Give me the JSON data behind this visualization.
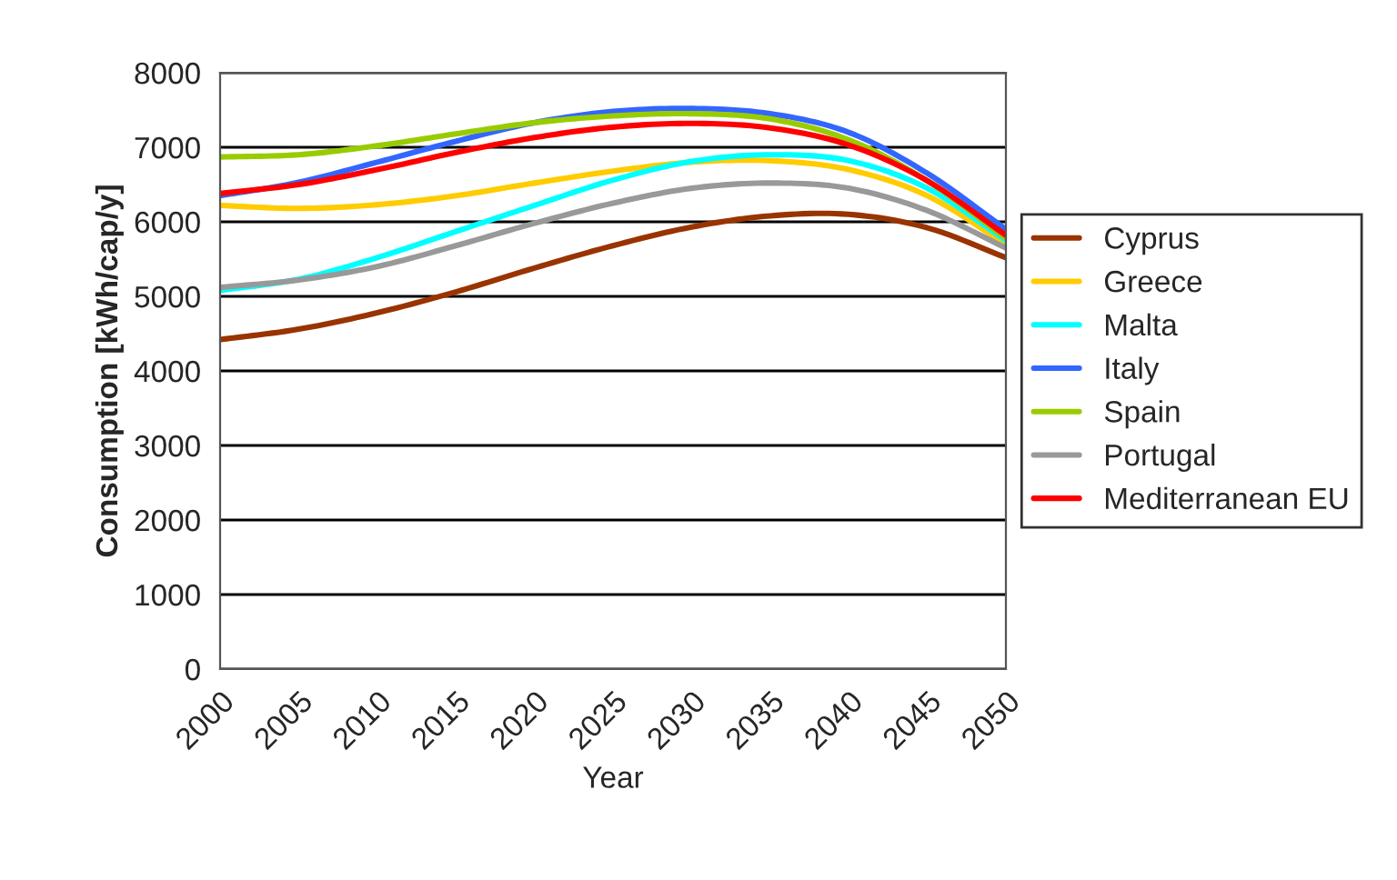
{
  "chart_data": {
    "type": "line",
    "xlabel": "Year",
    "ylabel": "Consumption [kWh/cap/y]",
    "x": [
      2000,
      2005,
      2010,
      2015,
      2020,
      2025,
      2030,
      2035,
      2040,
      2045,
      2050
    ],
    "xlim": [
      2000,
      2050
    ],
    "xticks": [
      2000,
      2005,
      2010,
      2015,
      2020,
      2025,
      2030,
      2035,
      2040,
      2045,
      2050
    ],
    "ylim": [
      0,
      8000
    ],
    "yticks": [
      0,
      1000,
      2000,
      3000,
      4000,
      5000,
      6000,
      7000,
      8000
    ],
    "grid": "y",
    "legend": "right",
    "marker": "none",
    "line_style": "solid",
    "series": [
      {
        "name": "Cyprus",
        "color": "#993300",
        "values": [
          4420,
          4560,
          4780,
          5060,
          5380,
          5680,
          5930,
          6080,
          6100,
          5920,
          5520
        ]
      },
      {
        "name": "Greece",
        "color": "#ffcc00",
        "values": [
          6220,
          6180,
          6230,
          6350,
          6520,
          6680,
          6800,
          6820,
          6700,
          6350,
          5700
        ]
      },
      {
        "name": "Malta",
        "color": "#00ffff",
        "values": [
          5080,
          5230,
          5520,
          5870,
          6220,
          6560,
          6810,
          6900,
          6820,
          6450,
          5750
        ]
      },
      {
        "name": "Italy",
        "color": "#3366ff",
        "values": [
          6350,
          6530,
          6800,
          7080,
          7330,
          7480,
          7520,
          7450,
          7200,
          6650,
          5900
        ]
      },
      {
        "name": "Spain",
        "color": "#99cc00",
        "values": [
          6870,
          6900,
          7020,
          7180,
          7330,
          7420,
          7450,
          7380,
          7100,
          6550,
          5780
        ]
      },
      {
        "name": "Portugal",
        "color": "#999999",
        "values": [
          5120,
          5220,
          5400,
          5680,
          5980,
          6250,
          6450,
          6520,
          6450,
          6150,
          5650
        ]
      },
      {
        "name": "Mediterranean EU",
        "color": "#ff0000",
        "values": [
          6380,
          6500,
          6700,
          6930,
          7130,
          7270,
          7320,
          7260,
          7030,
          6550,
          5820
        ]
      }
    ]
  }
}
